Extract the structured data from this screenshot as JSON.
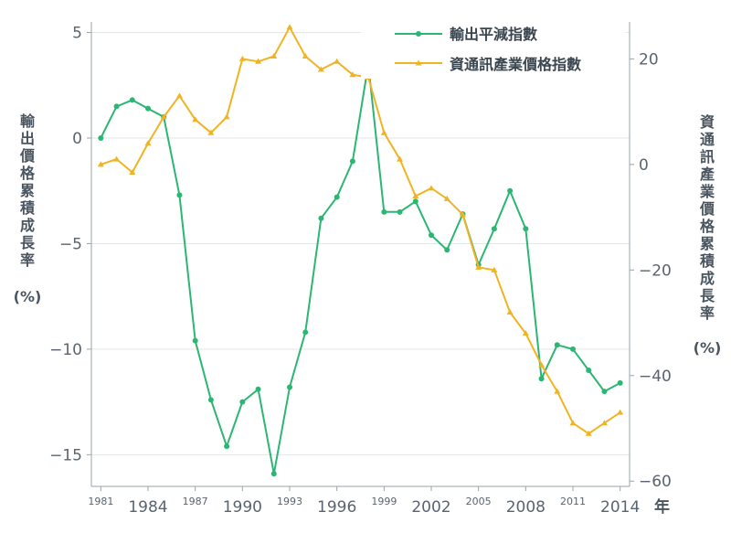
{
  "chart_data": {
    "type": "line",
    "xlabel": "年",
    "ylabel_left": [
      "輸",
      "出",
      "價",
      "格",
      "累",
      "積",
      "成",
      "長",
      "率",
      "(%)"
    ],
    "ylabel_right": [
      "資",
      "通",
      "訊",
      "產",
      "業",
      "價",
      "格",
      "累",
      "積",
      "成",
      "長",
      "率",
      "(%)"
    ],
    "ylim_left": [
      -16.5,
      5.5
    ],
    "ylim_right": [
      -61,
      27
    ],
    "left_ticks": [
      5,
      0,
      -5,
      -10,
      -15
    ],
    "left_tick_labels": [
      "5",
      "0",
      "−5",
      "−10",
      "−15"
    ],
    "right_ticks": [
      20,
      0,
      -20,
      -40,
      -60
    ],
    "right_tick_labels": [
      "20",
      "0",
      "−20",
      "−40",
      "−60"
    ],
    "x_ticks_small": [
      1981,
      1987,
      1993,
      1999,
      2005,
      2011
    ],
    "x_ticks_big": [
      1984,
      1990,
      1996,
      2002,
      2008,
      2014
    ],
    "x_tick_labels_small": [
      "1981",
      "1987",
      "1993",
      "1999",
      "2005",
      "2011"
    ],
    "x_tick_labels_big": [
      "1984",
      "1990",
      "1996",
      "2002",
      "2008",
      "2014"
    ],
    "grid": true,
    "legend_position": "top-right",
    "series": [
      {
        "name": "輸出平減指數",
        "axis": "left",
        "color": "#2bb673",
        "marker": "circle",
        "x": [
          1981,
          1982,
          1983,
          1984,
          1985,
          1986,
          1987,
          1988,
          1989,
          1990,
          1991,
          1992,
          1993,
          1994,
          1995,
          1996,
          1997,
          1998,
          1999,
          2000,
          2001,
          2002,
          2003,
          2004,
          2005,
          2006,
          2007,
          2008,
          2009,
          2010,
          2011,
          2012,
          2013,
          2014
        ],
        "values": [
          0,
          1.5,
          1.8,
          1.4,
          1.0,
          -2.7,
          -9.6,
          -12.4,
          -14.6,
          -12.5,
          -11.9,
          -15.9,
          -11.8,
          -9.2,
          -3.8,
          -2.8,
          -1.1,
          3.5,
          -3.5,
          -3.5,
          -3.0,
          -4.6,
          -5.3,
          -3.6,
          -6.0,
          -4.3,
          -2.5,
          -4.3,
          -11.4,
          -9.8,
          -10.0,
          -11.0,
          -12.0,
          -11.6
        ]
      },
      {
        "name": "資通訊產業價格指數",
        "axis": "right",
        "color": "#f0b323",
        "marker": "triangle",
        "x": [
          1981,
          1982,
          1983,
          1984,
          1985,
          1986,
          1987,
          1988,
          1989,
          1990,
          1991,
          1992,
          1993,
          1994,
          1995,
          1996,
          1997,
          1998,
          1999,
          2000,
          2001,
          2002,
          2003,
          2004,
          2005,
          2006,
          2007,
          2008,
          2009,
          2010,
          2011,
          2012,
          2013,
          2014
        ],
        "values": [
          0,
          1,
          -1.5,
          4,
          9,
          13,
          8.5,
          6,
          9,
          20,
          19.5,
          20.5,
          26,
          20.5,
          18,
          19.5,
          17,
          16.5,
          6,
          1,
          -6,
          -4.5,
          -6.5,
          -9.5,
          -19.5,
          -20,
          -28,
          -32,
          -38,
          -43,
          -49,
          -51,
          -49,
          -47
        ]
      }
    ]
  }
}
